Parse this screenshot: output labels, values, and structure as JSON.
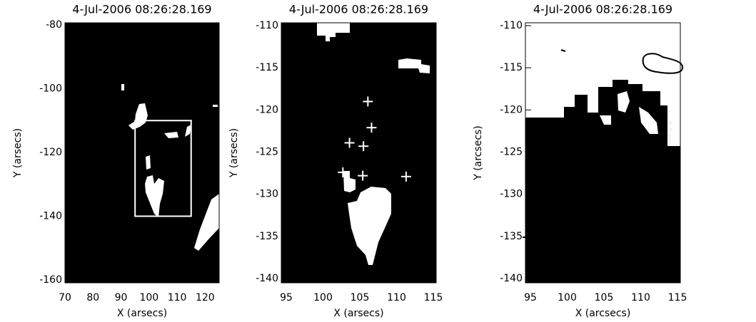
{
  "chart_data": [
    {
      "type": "image",
      "title": "4-Jul-2006  08:26:28.169",
      "x_label": "X (arsecs)",
      "y_label": "Y (arsecs)",
      "xlim": [
        70,
        125
      ],
      "ylim": [
        -160,
        -80
      ],
      "xticks": [
        70,
        80,
        90,
        100,
        110,
        120
      ],
      "yticks": [
        -160,
        -140,
        -120,
        -100,
        -80
      ],
      "box": {
        "x": [
          95,
          115
        ],
        "y": [
          -140,
          -110
        ]
      }
    },
    {
      "type": "image",
      "title": "4-Jul-2006  08:26:28.169",
      "x_label": "X (arsecs)",
      "y_label": "Y (arsecs)",
      "xlim": [
        95,
        115
      ],
      "ylim": [
        -140,
        -110
      ],
      "xticks": [
        95,
        100,
        105,
        110,
        115
      ],
      "yticks": [
        -140,
        -135,
        -130,
        -125,
        -120,
        -115,
        -110
      ],
      "points": {
        "x": [
          106.1,
          106.6,
          103.6,
          105.5,
          102.7,
          105.4,
          111.3
        ],
        "y": [
          -119.0,
          -122.1,
          -123.9,
          -124.3,
          -127.4,
          -127.8,
          -127.9
        ],
        "color": "#ffffff"
      }
    },
    {
      "type": "image",
      "title": "4-Jul-2006  08:26:28.169",
      "x_label": "X (arcsecs)",
      "y_label": "Y (arcsecs)",
      "xlim": [
        95,
        115
      ],
      "ylim": [
        -140,
        -110
      ],
      "xticks": [
        95,
        100,
        105,
        110,
        115
      ],
      "yticks": [
        -140,
        -135,
        -130,
        -125,
        -120,
        -115,
        -110
      ]
    }
  ]
}
